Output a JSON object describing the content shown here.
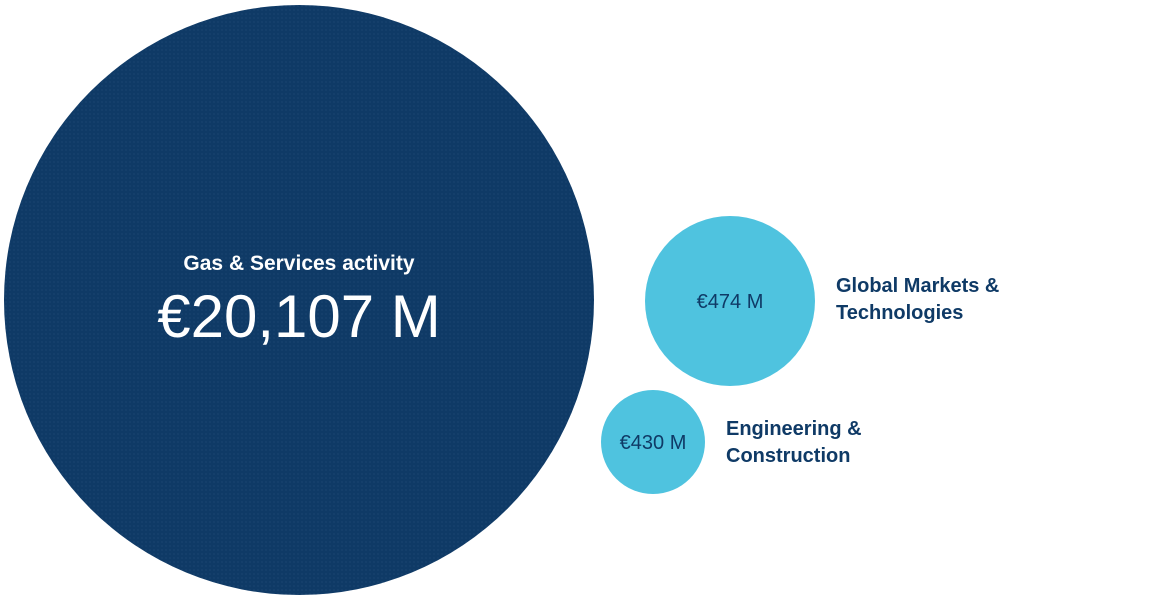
{
  "chart_data": {
    "type": "bubble",
    "bubbles": [
      {
        "name": "Gas & Services activity",
        "value": 20107,
        "display_value": "€20,107 M",
        "color": "#0f3a66",
        "label_position": "inside"
      },
      {
        "name_lines": [
          "Global Markets &",
          "Technologies"
        ],
        "value": 474,
        "display_value": "€474 M",
        "color": "#4fc3df",
        "label_position": "right"
      },
      {
        "name_lines": [
          "Engineering &",
          "Construction"
        ],
        "value": 430,
        "display_value": "€430 M",
        "color": "#4fc3df",
        "label_position": "right"
      }
    ]
  }
}
